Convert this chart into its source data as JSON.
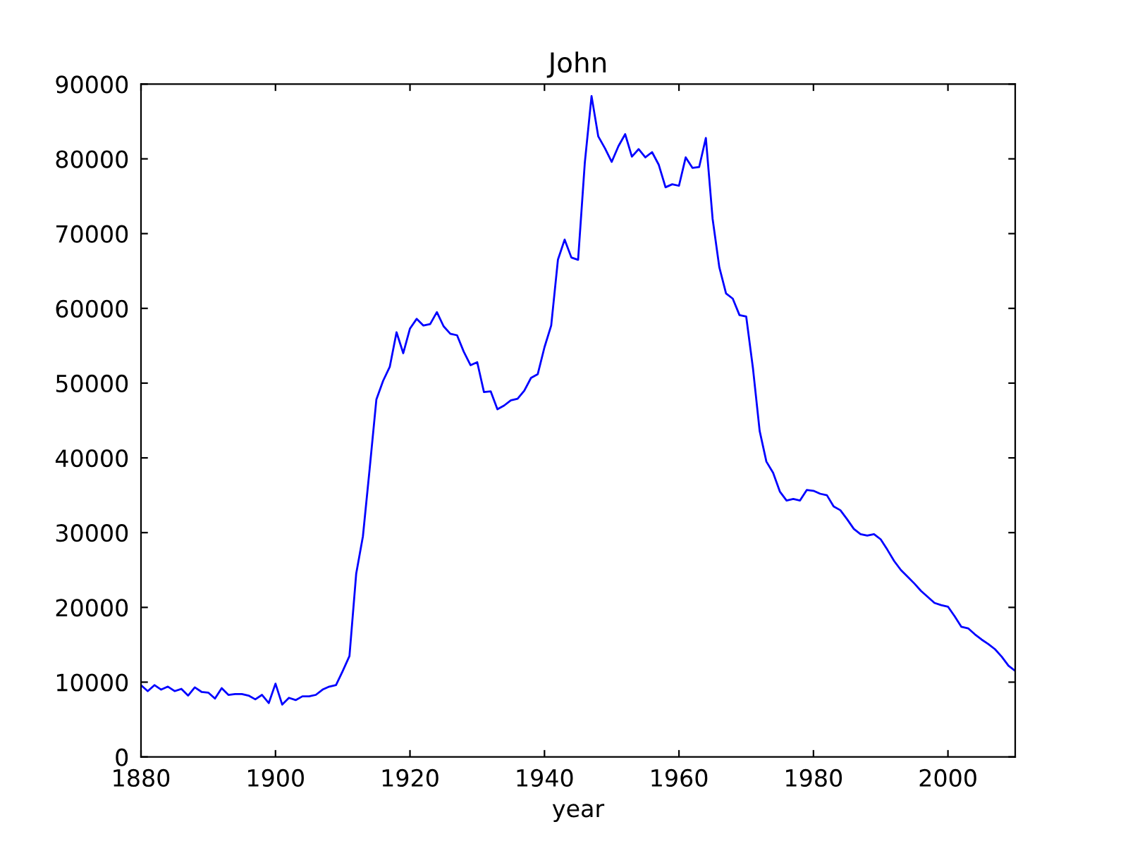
{
  "chart_data": {
    "type": "line",
    "title": "John",
    "xlabel": "year",
    "x": [
      1880,
      1881,
      1882,
      1883,
      1884,
      1885,
      1886,
      1887,
      1888,
      1889,
      1890,
      1891,
      1892,
      1893,
      1894,
      1895,
      1896,
      1897,
      1898,
      1899,
      1900,
      1901,
      1902,
      1903,
      1904,
      1905,
      1906,
      1907,
      1908,
      1909,
      1910,
      1911,
      1912,
      1913,
      1914,
      1915,
      1916,
      1917,
      1918,
      1919,
      1920,
      1921,
      1922,
      1923,
      1924,
      1925,
      1926,
      1927,
      1928,
      1929,
      1930,
      1931,
      1932,
      1933,
      1934,
      1935,
      1936,
      1937,
      1938,
      1939,
      1940,
      1941,
      1942,
      1943,
      1944,
      1945,
      1946,
      1947,
      1948,
      1949,
      1950,
      1951,
      1952,
      1953,
      1954,
      1955,
      1956,
      1957,
      1958,
      1959,
      1960,
      1961,
      1962,
      1963,
      1964,
      1965,
      1966,
      1967,
      1968,
      1969,
      1970,
      1971,
      1972,
      1973,
      1974,
      1975,
      1976,
      1977,
      1978,
      1979,
      1980,
      1981,
      1982,
      1983,
      1984,
      1985,
      1986,
      1987,
      1988,
      1989,
      1990,
      1991,
      1992,
      1993,
      1994,
      1995,
      1996,
      1997,
      1998,
      1999,
      2000,
      2001,
      2002,
      2003,
      2004,
      2005,
      2006,
      2007,
      2008,
      2009,
      2010
    ],
    "series": [
      {
        "color": "#0000ff",
        "values": [
          9600,
          8800,
          9600,
          9000,
          9400,
          8800,
          9100,
          8200,
          9300,
          8700,
          8600,
          7800,
          9200,
          8300,
          8400,
          8400,
          8200,
          7700,
          8300,
          7200,
          9800,
          7000,
          7900,
          7600,
          8100,
          8100,
          8300,
          9000,
          9400,
          9600,
          11500,
          13500,
          24500,
          29500,
          38500,
          47800,
          50300,
          52200,
          56800,
          54000,
          57300,
          58600,
          57700,
          57900,
          59500,
          57600,
          56600,
          56400,
          54200,
          52400,
          52800,
          48800,
          48900,
          46500,
          47000,
          47700,
          47900,
          49000,
          50700,
          51200,
          54800,
          57700,
          66500,
          69200,
          66800,
          66500,
          79500,
          88400,
          83000,
          81400,
          79600,
          81700,
          83300,
          80300,
          81300,
          80200,
          80900,
          79200,
          76200,
          76600,
          76400,
          80200,
          78800,
          78900,
          82800,
          72000,
          65500,
          62000,
          61300,
          59100,
          58900,
          52000,
          43600,
          39500,
          38000,
          35500,
          34300,
          34500,
          34300,
          35700,
          35600,
          35200,
          35000,
          33500,
          33000,
          31800,
          30500,
          29800,
          29600,
          29800,
          29100,
          27700,
          26200,
          25000,
          24100,
          23200,
          22200,
          21400,
          20600,
          20300,
          20100,
          18800,
          17400,
          17200,
          16400,
          15700,
          15100,
          14400,
          13400,
          12200,
          11500
        ]
      }
    ],
    "xlim": [
      1880,
      2010
    ],
    "xticks": [
      1880,
      1900,
      1920,
      1940,
      1960,
      1980,
      2000
    ],
    "ylim": [
      0,
      90000
    ],
    "yticks": [
      0,
      10000,
      20000,
      30000,
      40000,
      50000,
      60000,
      70000,
      80000,
      90000
    ],
    "grid": false,
    "legend": false,
    "marker": "none",
    "line_style": "solid"
  }
}
